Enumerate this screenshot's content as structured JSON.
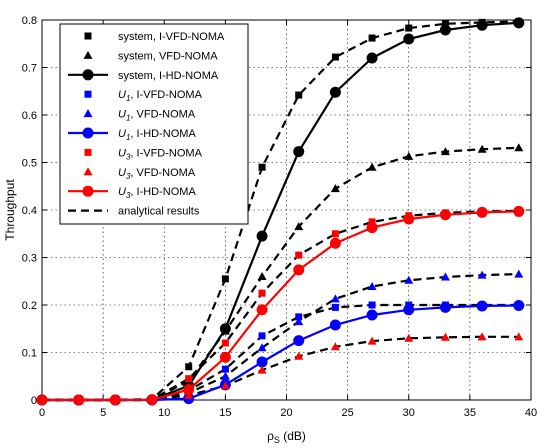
{
  "chart_data": {
    "type": "line",
    "xlabel_main": "ρ",
    "xlabel_sub": "S",
    "xlabel_unit": " (dB)",
    "ylabel": "Throughput",
    "xlim": [
      0,
      40
    ],
    "ylim": [
      0,
      0.8
    ],
    "x_ticks": [
      0,
      5,
      10,
      15,
      20,
      25,
      30,
      35,
      40
    ],
    "y_ticks": [
      0,
      0.1,
      0.2,
      0.3,
      0.4,
      0.5,
      0.6,
      0.7,
      0.8
    ],
    "x_tick_labels": [
      "0",
      "5",
      "10",
      "15",
      "20",
      "25",
      "30",
      "35",
      "40"
    ],
    "y_tick_labels": [
      "0",
      "0.1",
      "0.2",
      "0.3",
      "0.4",
      "0.5",
      "0.6",
      "0.7",
      "0.8"
    ],
    "grid": true,
    "legend_position": "top-left",
    "x": [
      0,
      3,
      6,
      9,
      12,
      15,
      18,
      21,
      24,
      27,
      30,
      33,
      36,
      39
    ],
    "series": [
      {
        "name": "system, I-VFD-NOMA",
        "marker": "square",
        "color": "#000000",
        "line": "none",
        "values": [
          0,
          0,
          0,
          0.002,
          0.07,
          0.255,
          0.49,
          0.642,
          0.722,
          0.762,
          0.783,
          0.792,
          0.795,
          0.797
        ]
      },
      {
        "name": "system, VFD-NOMA",
        "marker": "triangle",
        "color": "#000000",
        "line": "none",
        "values": [
          0,
          0,
          0,
          0.001,
          0.04,
          0.145,
          0.26,
          0.365,
          0.445,
          0.49,
          0.513,
          0.523,
          0.528,
          0.531
        ]
      },
      {
        "name": "system, I-HD-NOMA",
        "marker": "circle",
        "color": "#000000",
        "line": "solid",
        "values": [
          0,
          0,
          0,
          0.0005,
          0.03,
          0.15,
          0.345,
          0.523,
          0.648,
          0.72,
          0.76,
          0.779,
          0.789,
          0.794
        ]
      },
      {
        "name": "U1, I-VFD-NOMA",
        "name_main": "U",
        "name_sub": "1",
        "name_rest": ", I-VFD-NOMA",
        "marker": "square",
        "color": "#0000ff",
        "line": "none",
        "values": [
          0,
          0,
          0,
          0,
          0.02,
          0.065,
          0.135,
          0.175,
          0.195,
          0.2,
          0.2,
          0.2,
          0.2,
          0.2
        ]
      },
      {
        "name": "U1, VFD-NOMA",
        "name_main": "U",
        "name_sub": "1",
        "name_rest": ", VFD-NOMA",
        "marker": "triangle",
        "color": "#0000ff",
        "line": "none",
        "values": [
          0,
          0,
          0,
          0,
          0.015,
          0.05,
          0.11,
          0.165,
          0.213,
          0.239,
          0.252,
          0.259,
          0.263,
          0.265
        ]
      },
      {
        "name": "U1, I-HD-NOMA",
        "name_main": "U",
        "name_sub": "1",
        "name_rest": ", I-HD-NOMA",
        "marker": "circle",
        "color": "#0000ff",
        "line": "solid",
        "values": [
          0,
          0,
          0,
          0,
          0.003,
          0.032,
          0.08,
          0.125,
          0.158,
          0.179,
          0.19,
          0.195,
          0.198,
          0.199
        ]
      },
      {
        "name": "U3, I-VFD-NOMA",
        "name_main": "U",
        "name_sub": "3",
        "name_rest": ", I-VFD-NOMA",
        "marker": "square",
        "color": "#ff0000",
        "line": "none",
        "values": [
          0,
          0,
          0,
          0.001,
          0.045,
          0.12,
          0.225,
          0.305,
          0.35,
          0.375,
          0.388,
          0.394,
          0.397,
          0.398
        ]
      },
      {
        "name": "U3, VFD-NOMA",
        "name_main": "U",
        "name_sub": "3",
        "name_rest": ", VFD-NOMA",
        "marker": "triangle",
        "color": "#ff0000",
        "line": "none",
        "values": [
          0,
          0,
          0,
          0,
          0.01,
          0.03,
          0.063,
          0.092,
          0.112,
          0.124,
          0.13,
          0.132,
          0.133,
          0.133
        ]
      },
      {
        "name": "U3, I-HD-NOMA",
        "name_main": "U",
        "name_sub": "3",
        "name_rest": ", I-HD-NOMA",
        "marker": "circle",
        "color": "#ff0000",
        "line": "solid",
        "values": [
          0,
          0,
          0,
          0.0005,
          0.022,
          0.09,
          0.19,
          0.274,
          0.33,
          0.363,
          0.381,
          0.39,
          0.395,
          0.397
        ]
      }
    ],
    "analytical": {
      "name": "analytical results",
      "color": "#000000",
      "line": "dashed",
      "curves": [
        [
          0,
          0,
          0,
          0.002,
          0.07,
          0.255,
          0.49,
          0.642,
          0.722,
          0.762,
          0.783,
          0.792,
          0.795,
          0.797
        ],
        [
          0,
          0,
          0,
          0.001,
          0.04,
          0.145,
          0.26,
          0.365,
          0.445,
          0.49,
          0.513,
          0.523,
          0.528,
          0.531
        ],
        [
          0,
          0,
          0,
          0,
          0.02,
          0.065,
          0.135,
          0.175,
          0.195,
          0.2,
          0.2,
          0.2,
          0.2,
          0.2
        ],
        [
          0,
          0,
          0,
          0,
          0.015,
          0.05,
          0.11,
          0.165,
          0.213,
          0.239,
          0.252,
          0.259,
          0.263,
          0.265
        ],
        [
          0,
          0,
          0,
          0.001,
          0.045,
          0.12,
          0.225,
          0.305,
          0.35,
          0.375,
          0.388,
          0.394,
          0.397,
          0.398
        ],
        [
          0,
          0,
          0,
          0,
          0.01,
          0.03,
          0.063,
          0.092,
          0.112,
          0.124,
          0.13,
          0.132,
          0.133,
          0.133
        ]
      ]
    }
  }
}
